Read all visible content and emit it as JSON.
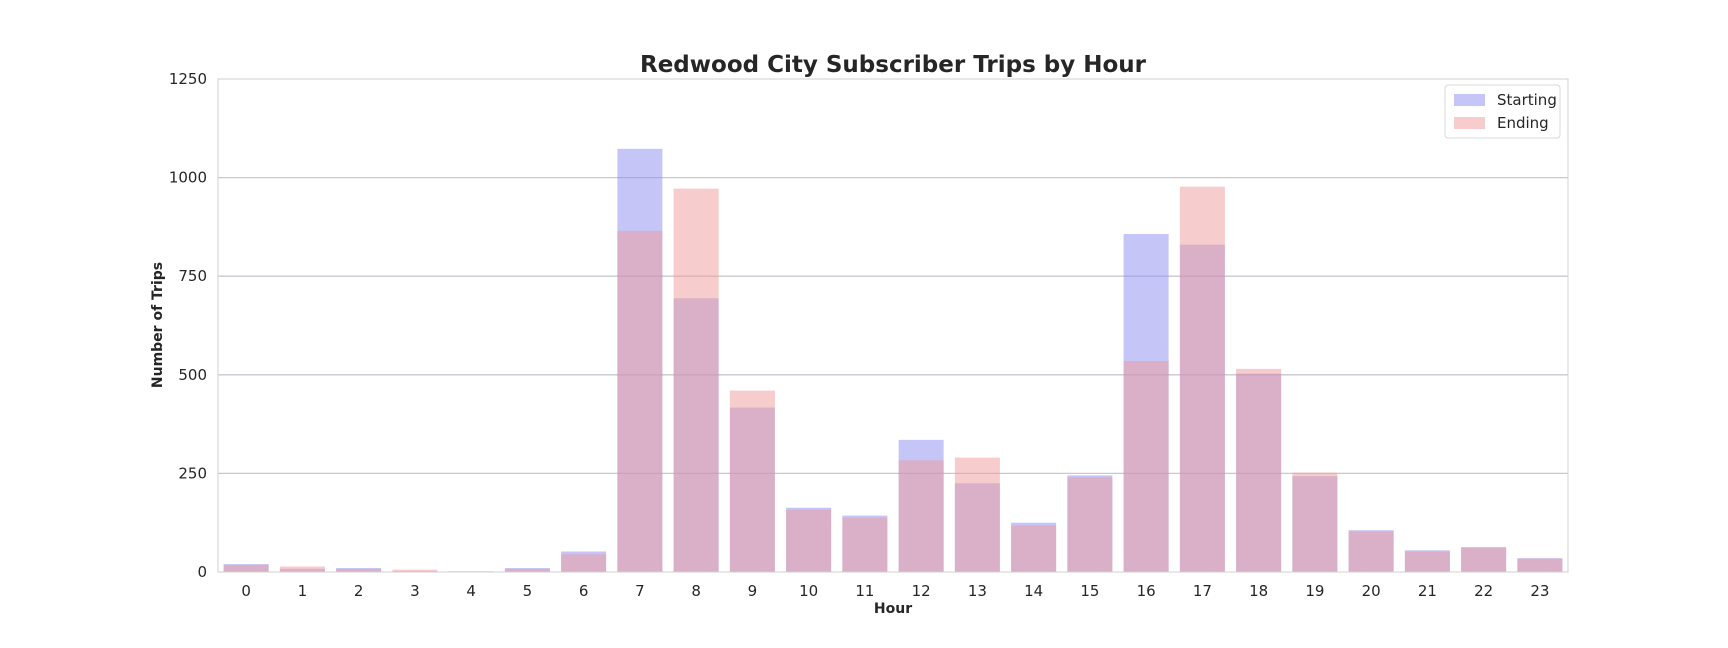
{
  "chart_data": {
    "type": "bar",
    "title": "Redwood City Subscriber Trips by Hour",
    "xlabel": "Hour",
    "ylabel": "Number of Trips",
    "ylim": [
      0,
      1250
    ],
    "yticks": [
      0,
      250,
      500,
      750,
      1000,
      1250
    ],
    "grid": "horizontal",
    "legend_position": "top-right",
    "overlay": true,
    "categories": [
      "0",
      "1",
      "2",
      "3",
      "4",
      "5",
      "6",
      "7",
      "8",
      "9",
      "10",
      "11",
      "12",
      "13",
      "14",
      "15",
      "16",
      "17",
      "18",
      "19",
      "20",
      "21",
      "22",
      "23"
    ],
    "series": [
      {
        "name": "Starting",
        "color": "#8c8cf0",
        "values": [
          20,
          8,
          10,
          2,
          1,
          10,
          52,
          1073,
          694,
          417,
          163,
          143,
          335,
          225,
          125,
          245,
          857,
          830,
          503,
          243,
          106,
          55,
          63,
          35
        ]
      },
      {
        "name": "Ending",
        "color": "#ef9a9a",
        "values": [
          18,
          14,
          8,
          6,
          2,
          8,
          45,
          865,
          972,
          460,
          158,
          138,
          283,
          290,
          118,
          240,
          535,
          977,
          515,
          252,
          103,
          52,
          62,
          34
        ]
      }
    ]
  }
}
